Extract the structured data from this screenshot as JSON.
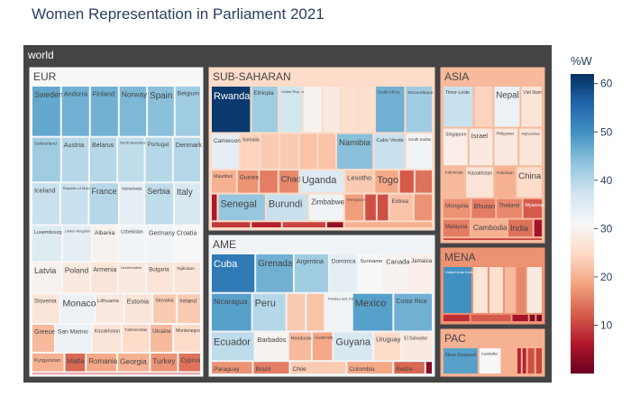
{
  "chart_data": {
    "type": "treemap",
    "title": "Women Representation in Parliament 2021",
    "root_label": "world",
    "colorbar": {
      "title": "%W",
      "ticks": [
        10,
        20,
        30,
        40,
        50,
        60
      ],
      "range": [
        0,
        62
      ],
      "colorscale": "RdBu"
    },
    "regions": [
      {
        "name": "EUR",
        "value": 31,
        "countries": [
          [
            "Sweden",
            47
          ],
          [
            "Andorra",
            46
          ],
          [
            "Finland",
            46
          ],
          [
            "Norway",
            45
          ],
          [
            "Spain",
            44
          ],
          [
            "Belgium",
            42
          ],
          [
            "Switzerland",
            42
          ],
          [
            "Austria",
            40
          ],
          [
            "Belarus",
            40
          ],
          [
            "North Macedonia",
            39
          ],
          [
            "Portugal",
            40
          ],
          [
            "Denmark",
            40
          ],
          [
            "Iceland",
            38
          ],
          [
            "Republic of Moldova",
            38
          ],
          [
            "France",
            40
          ],
          [
            "Netherlands",
            34
          ],
          [
            "Serbia",
            39
          ],
          [
            "Italy",
            36
          ],
          [
            "Luxembourg",
            35
          ],
          [
            "United Kingdom",
            34
          ],
          [
            "Albania",
            30
          ],
          [
            "Uzbekistan",
            32
          ],
          [
            "Germany",
            32
          ],
          [
            "Croatia",
            31
          ],
          [
            "Latvia",
            30
          ],
          [
            "Poland",
            28
          ],
          [
            "Armenia",
            27
          ],
          [
            "Liechtenstein",
            28
          ],
          [
            "Bulgaria",
            27
          ],
          [
            "Tajikistan",
            27
          ],
          [
            "Slovenia",
            27
          ],
          [
            "Monaco",
            33
          ],
          [
            "Lithuania",
            28
          ],
          [
            "Estonia",
            27
          ],
          [
            "Slovakia",
            23
          ],
          [
            "Ireland",
            23
          ],
          [
            "Greece",
            21
          ],
          [
            "San Marino",
            33
          ],
          [
            "Kazakhstan",
            27
          ],
          [
            "Turkmenistan",
            25
          ],
          [
            "Ukraine",
            21
          ],
          [
            "Montenegro",
            25
          ],
          [
            "Kyrgyzstan",
            20
          ],
          [
            "Malta",
            13
          ],
          [
            "Romania",
            19
          ],
          [
            "Georgia",
            20
          ],
          [
            "Turkey",
            17
          ],
          [
            "Cyprus",
            14
          ],
          [
            "Hungary",
            12
          ]
        ]
      },
      {
        "name": "SUB-SAHARAN",
        "value": 25,
        "countries": [
          [
            "Rwanda",
            61
          ],
          [
            "Ethiopia",
            42
          ],
          [
            "United Rep. of Tanzania",
            37
          ],
          [
            "Angola",
            30
          ],
          [
            "Mali",
            28
          ],
          [
            "Djibouti",
            26
          ],
          [
            "Niger",
            26
          ],
          [
            "South Africa",
            46
          ],
          [
            "Mozambique",
            42
          ],
          [
            "Cameroon",
            34
          ],
          [
            "Somalia",
            24
          ],
          [
            "Malawi",
            23
          ],
          [
            "Seychelles",
            23
          ],
          [
            "Kenya",
            22
          ],
          [
            "Eswatini",
            22
          ],
          [
            "Namibia",
            44
          ],
          [
            "Cabo Verde",
            38
          ],
          [
            "South Sudan",
            32
          ],
          [
            "Mauritius",
            20
          ],
          [
            "Guinea",
            17
          ],
          [
            "Gabon",
            15
          ],
          [
            "Chad",
            16
          ],
          [
            "Uganda",
            35
          ],
          [
            "Lesotho",
            23
          ],
          [
            "Togo",
            19
          ],
          [
            "Sierra Leone",
            12
          ],
          [
            "Ghana",
            14
          ],
          [
            "Burkina Faso",
            6
          ],
          [
            "Senegal",
            43
          ],
          [
            "Burundi",
            38
          ],
          [
            "Zimbabwe",
            32
          ],
          [
            "Madagascar",
            18
          ],
          [
            "Côte d'Ivoire",
            11
          ],
          [
            "Congo",
            11
          ],
          [
            "Eritrea",
            22
          ],
          [
            "Comoros",
            17
          ],
          [
            "Gambia",
            9
          ],
          [
            "Benin",
            7
          ],
          [
            "Liberia",
            10
          ],
          [
            "Nigeria",
            4
          ],
          [
            "Mauritania",
            20
          ]
        ]
      },
      {
        "name": "ASIA",
        "value": 21,
        "countries": [
          [
            "Timor-Leste",
            38
          ],
          [
            "Armenia",
            24
          ],
          [
            "Nepal",
            33
          ],
          [
            "Viet Nam",
            27
          ],
          [
            "Singapore",
            29
          ],
          [
            "Israel",
            28
          ],
          [
            "Philippines",
            28
          ],
          [
            "Afghanistan",
            27
          ],
          [
            "Indonesia",
            21
          ],
          [
            "Kazakhstan",
            27
          ],
          [
            "Pakistan",
            20
          ],
          [
            "China",
            25
          ],
          [
            "Mongolia",
            17
          ],
          [
            "Bhutan",
            15
          ],
          [
            "Thailand",
            16
          ],
          [
            "Myanmar",
            12
          ],
          [
            "Malaysia",
            15
          ],
          [
            "Cambodia",
            20
          ],
          [
            "India",
            14
          ],
          [
            "Sri Lanka",
            5
          ],
          [
            "Japan",
            10
          ]
        ]
      },
      {
        "name": "AME",
        "value": 32,
        "countries": [
          [
            "Cuba",
            53
          ],
          [
            "Grenada",
            46
          ],
          [
            "Argentina",
            42
          ],
          [
            "Dominica",
            34
          ],
          [
            "Suriname",
            31
          ],
          [
            "Canada",
            30
          ],
          [
            "Jamaica",
            29
          ],
          [
            "Nicaragua",
            48
          ],
          [
            "Peru",
            40
          ],
          [
            "Bahamas",
            23
          ],
          [
            "Panama",
            22
          ],
          [
            "Trinidad and Tobago",
            32
          ],
          [
            "Mexico",
            48
          ],
          [
            "Costa Rica",
            46
          ],
          [
            "Ecuador",
            39
          ],
          [
            "Barbados",
            30
          ],
          [
            "Honduras",
            21
          ],
          [
            "Guatemala",
            19
          ],
          [
            "Guyana",
            36
          ],
          [
            "Uruguay",
            25
          ],
          [
            "El Salvador",
            28
          ],
          [
            "Paraguay",
            17
          ],
          [
            "Brazil",
            15
          ],
          [
            "Chile",
            23
          ],
          [
            "Colombia",
            19
          ],
          [
            "Belize",
            13
          ],
          [
            "Haiti",
            3
          ]
        ]
      },
      {
        "name": "MENA",
        "value": 17,
        "countries": [
          [
            "United Arab Emirates",
            50
          ],
          [
            "Iraq",
            27
          ],
          [
            "Tunisia",
            26
          ],
          [
            "Morocco",
            21
          ],
          [
            "Libya",
            16
          ],
          [
            "Egypt",
            28
          ],
          [
            "Algeria",
            8
          ],
          [
            "Jordan",
            12
          ],
          [
            "Lebanon",
            5
          ],
          [
            "Oman",
            2
          ],
          [
            "Kuwait",
            2
          ]
        ]
      },
      {
        "name": "PAC",
        "value": 20,
        "countries": [
          [
            "New Zealand",
            48
          ],
          [
            "Australia",
            31
          ],
          [
            "Fiji",
            20
          ],
          [
            "Tonga",
            7
          ],
          [
            "Palau",
            7
          ],
          [
            "Nauru",
            11
          ],
          [
            "Samoa",
            10
          ]
        ]
      }
    ]
  }
}
